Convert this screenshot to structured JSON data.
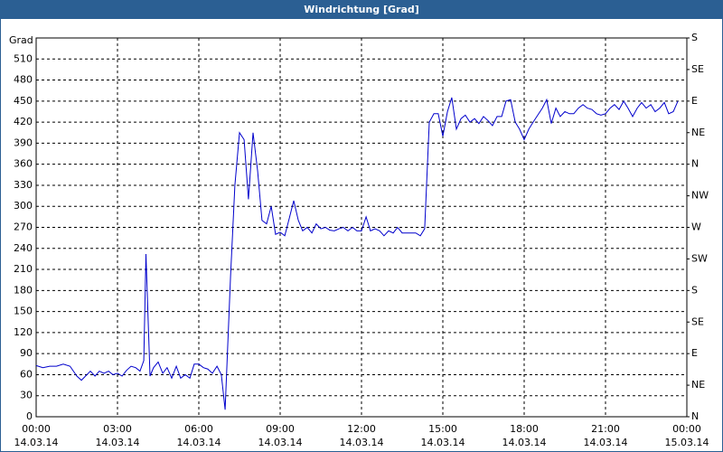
{
  "chart_data": {
    "type": "line",
    "title": "Windrichtung [Grad]",
    "y_label": "Grad",
    "x": [
      0,
      0.25,
      0.5,
      0.75,
      1,
      1.25,
      1.5,
      1.67,
      2,
      2.17,
      2.33,
      2.5,
      2.67,
      2.83,
      3,
      3.17,
      3.33,
      3.5,
      3.67,
      3.83,
      3.97,
      4.05,
      4.2,
      4.33,
      4.5,
      4.67,
      4.83,
      5,
      5.17,
      5.33,
      5.5,
      5.67,
      5.83,
      6,
      6.17,
      6.33,
      6.5,
      6.67,
      6.83,
      6.97,
      7.17,
      7.33,
      7.5,
      7.67,
      7.83,
      8,
      8.17,
      8.33,
      8.5,
      8.67,
      8.83,
      9,
      9.17,
      9.33,
      9.5,
      9.67,
      9.83,
      10,
      10.17,
      10.33,
      10.5,
      10.67,
      10.83,
      11,
      11.17,
      11.33,
      11.5,
      11.67,
      11.83,
      12,
      12.17,
      12.33,
      12.5,
      12.67,
      12.83,
      13,
      13.17,
      13.33,
      13.5,
      13.67,
      13.83,
      14,
      14.17,
      14.33,
      14.5,
      14.67,
      14.83,
      15,
      15.17,
      15.33,
      15.5,
      15.67,
      15.83,
      16,
      16.17,
      16.33,
      16.5,
      16.67,
      16.83,
      17,
      17.17,
      17.33,
      17.5,
      17.67,
      17.83,
      18,
      18.17,
      18.33,
      18.5,
      18.67,
      18.83,
      19,
      19.17,
      19.33,
      19.5,
      19.67,
      19.83,
      20,
      20.17,
      20.33,
      20.5,
      20.67,
      20.83,
      21,
      21.17,
      21.33,
      21.5,
      21.67,
      21.83,
      22,
      22.17,
      22.33,
      22.5,
      22.67,
      22.83,
      23,
      23.17,
      23.33,
      23.5,
      23.67
    ],
    "series": [
      {
        "name": "Windrichtung",
        "color": "#0000cc",
        "values": [
          73,
          70,
          72,
          72,
          75,
          72,
          58,
          52,
          65,
          58,
          65,
          62,
          65,
          60,
          62,
          58,
          66,
          72,
          70,
          65,
          80,
          232,
          58,
          70,
          78,
          62,
          70,
          55,
          72,
          55,
          60,
          55,
          75,
          75,
          70,
          68,
          62,
          72,
          60,
          10,
          200,
          330,
          405,
          395,
          310,
          405,
          350,
          280,
          275,
          300,
          260,
          263,
          258,
          282,
          308,
          280,
          265,
          270,
          262,
          275,
          268,
          270,
          266,
          265,
          268,
          270,
          265,
          270,
          265,
          265,
          285,
          265,
          268,
          265,
          258,
          265,
          262,
          270,
          262,
          262,
          262,
          262,
          258,
          268,
          420,
          432,
          432,
          400,
          435,
          455,
          410,
          425,
          430,
          420,
          425,
          418,
          428,
          422,
          415,
          428,
          428,
          450,
          452,
          420,
          410,
          395,
          410,
          420,
          430,
          440,
          452,
          418,
          440,
          428,
          435,
          432,
          432,
          440,
          445,
          440,
          438,
          432,
          430,
          432,
          440,
          445,
          438,
          450,
          440,
          428,
          440,
          448,
          440,
          445,
          435,
          440,
          448,
          432,
          435,
          450
        ]
      }
    ],
    "xlim": [
      0,
      24
    ],
    "xticks": [
      {
        "value": 0,
        "label": "00:00"
      },
      {
        "value": 3,
        "label": "03:00"
      },
      {
        "value": 6,
        "label": "06:00"
      },
      {
        "value": 9,
        "label": "09:00"
      },
      {
        "value": 12,
        "label": "12:00"
      },
      {
        "value": 15,
        "label": "15:00"
      },
      {
        "value": 18,
        "label": "18:00"
      },
      {
        "value": 21,
        "label": "21:00"
      },
      {
        "value": 24,
        "label": "00:00"
      }
    ],
    "xtick_dates": [
      "14.03.14",
      "14.03.14",
      "14.03.14",
      "14.03.14",
      "14.03.14",
      "14.03.14",
      "14.03.14",
      "14.03.14",
      "15.03.14"
    ],
    "ylim": [
      0,
      540
    ],
    "yticks": [
      0,
      30,
      60,
      90,
      120,
      150,
      180,
      210,
      240,
      270,
      300,
      330,
      360,
      390,
      420,
      450,
      480,
      510
    ],
    "y2lim": [
      0,
      540
    ],
    "y2ticks": [
      {
        "value": 0,
        "label": "N"
      },
      {
        "value": 45,
        "label": "NE"
      },
      {
        "value": 90,
        "label": "E"
      },
      {
        "value": 135,
        "label": "SE"
      },
      {
        "value": 180,
        "label": "S"
      },
      {
        "value": 225,
        "label": "SW"
      },
      {
        "value": 270,
        "label": "W"
      },
      {
        "value": 315,
        "label": "NW"
      },
      {
        "value": 360,
        "label": "N"
      },
      {
        "value": 405,
        "label": "NE"
      },
      {
        "value": 450,
        "label": "E"
      },
      {
        "value": 495,
        "label": "SE"
      },
      {
        "value": 540,
        "label": "S"
      }
    ],
    "grid": true
  }
}
